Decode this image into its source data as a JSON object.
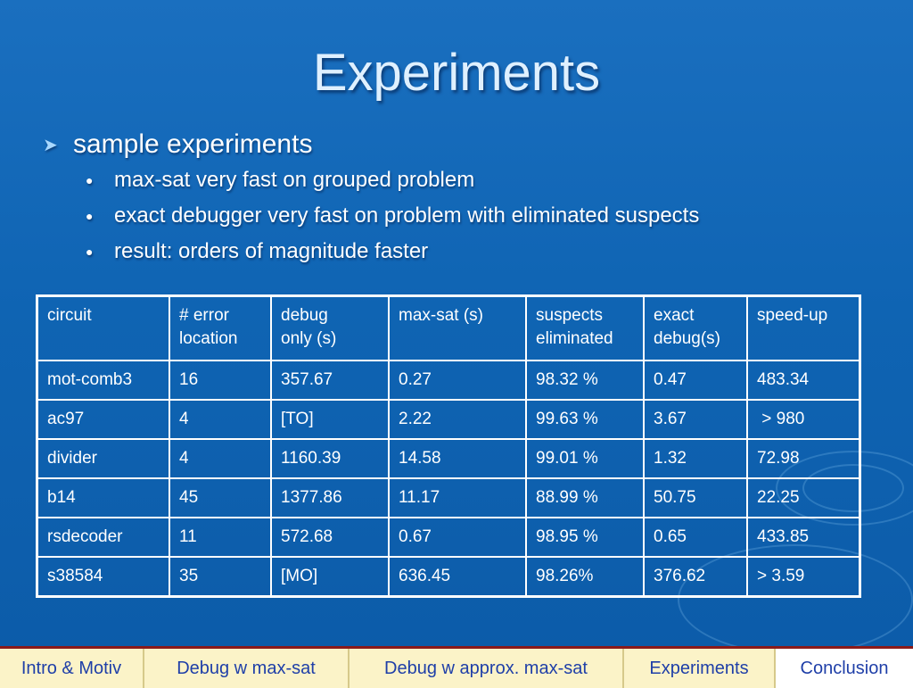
{
  "slide": {
    "title": "Experiments",
    "bullet_main": "sample experiments",
    "sub_bullets": [
      "max-sat very fast on grouped problem",
      "exact debugger very fast on problem with eliminated suspects",
      "result: orders of magnitude faster"
    ]
  },
  "table": {
    "headers": [
      [
        "circuit"
      ],
      [
        "# error",
        "location"
      ],
      [
        "debug",
        "only (s)"
      ],
      [
        "max-sat (s)"
      ],
      [
        "suspects",
        "eliminated"
      ],
      [
        "exact",
        "debug(s)"
      ],
      [
        "speed-up"
      ]
    ],
    "rows": [
      [
        "mot-comb3",
        "16",
        "357.67",
        "0.27",
        "98.32 %",
        "0.47",
        "483.34"
      ],
      [
        "ac97",
        "4",
        "[TO]",
        "2.22",
        "99.63 %",
        "3.67",
        " > 980"
      ],
      [
        "divider",
        "4",
        "1160.39",
        "14.58",
        "99.01 %",
        "1.32",
        "72.98"
      ],
      [
        "b14",
        "45",
        "1377.86",
        "11.17",
        "88.99 %",
        "50.75",
        "22.25"
      ],
      [
        "rsdecoder",
        "11",
        "572.68",
        "0.67",
        "98.95 %",
        "0.65",
        "433.85"
      ],
      [
        "s38584",
        "35",
        "[MO]",
        "636.45",
        "98.26%",
        "376.62",
        "> 3.59"
      ]
    ]
  },
  "nav": {
    "items": [
      "Intro & Motiv",
      "Debug w max-sat",
      "Debug w approx. max-sat",
      "Experiments",
      "Conclusion"
    ],
    "active_index": 4
  },
  "colors": {
    "background": "#1069b8",
    "title": "#dff0ff",
    "nav_background": "#fbf3c8",
    "nav_text": "#1f3fa8",
    "nav_border": "#8a1a1a"
  },
  "icons": {
    "bullet_main": "arrow-right-icon",
    "bullet_sub": "dot-icon"
  }
}
